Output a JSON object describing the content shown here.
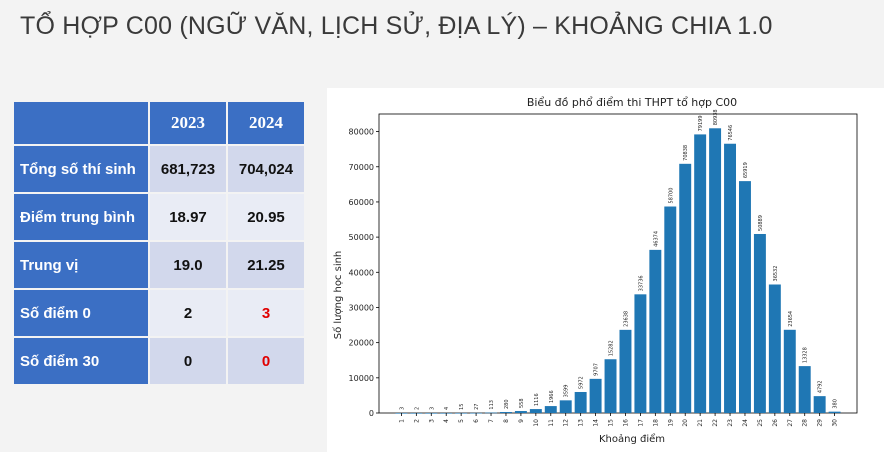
{
  "page": {
    "title": "TỔ HỢP C00 (NGỮ VĂN, LỊCH SỬ, ĐỊA LÝ) – KHOẢNG CHIA 1.0"
  },
  "table": {
    "headers": [
      "",
      "2023",
      "2024"
    ],
    "rows": [
      {
        "label": "Tổng số thí sinh",
        "v2023": "681,723",
        "v2024": "704,024"
      },
      {
        "label": "Điểm trung bình",
        "v2023": "18.97",
        "v2024": "20.95"
      },
      {
        "label": "Trung vị",
        "v2023": "19.0",
        "v2024": "21.25"
      },
      {
        "label": "Số điểm 0",
        "v2023": "2",
        "v2024": "3"
      },
      {
        "label": "Số điểm 30",
        "v2023": "0",
        "v2024": "0"
      }
    ],
    "highlight_color": "#e00000"
  },
  "chart_data": {
    "type": "bar",
    "title": "Biểu đồ phổ điểm thi THPT tổ hợp C00",
    "xlabel": "Khoảng điểm",
    "ylabel": "Số lượng học sinh",
    "categories": [
      "1",
      "2",
      "3",
      "4",
      "5",
      "6",
      "7",
      "8",
      "9",
      "10",
      "11",
      "12",
      "13",
      "14",
      "15",
      "16",
      "17",
      "18",
      "19",
      "20",
      "21",
      "22",
      "23",
      "24",
      "25",
      "26",
      "27",
      "28",
      "29",
      "30"
    ],
    "values": [
      3,
      2,
      3,
      4,
      15,
      27,
      113,
      280,
      558,
      1116,
      1966,
      3599,
      5972,
      9707,
      15282,
      23638,
      33736,
      46374,
      58700,
      70838,
      79199,
      80938,
      76546,
      65919,
      50889,
      36532,
      23654,
      13328,
      4792,
      380
    ],
    "value_labels": [
      "3",
      "2",
      "3",
      "4",
      "15",
      "27",
      "113",
      "280",
      "558",
      "1116",
      "1966",
      "3599",
      "5972",
      "9707",
      "15282",
      "23638",
      "33736",
      "46374",
      "58700",
      "70838",
      "79199",
      "80938",
      "76546",
      "65919",
      "50889",
      "36532",
      "23654",
      "13328",
      "4792",
      "380"
    ],
    "ylim": [
      0,
      85000
    ],
    "yticks": [
      0,
      10000,
      20000,
      30000,
      40000,
      50000,
      60000,
      70000,
      80000
    ],
    "bar_color": "#1f77b4",
    "grid": false
  }
}
